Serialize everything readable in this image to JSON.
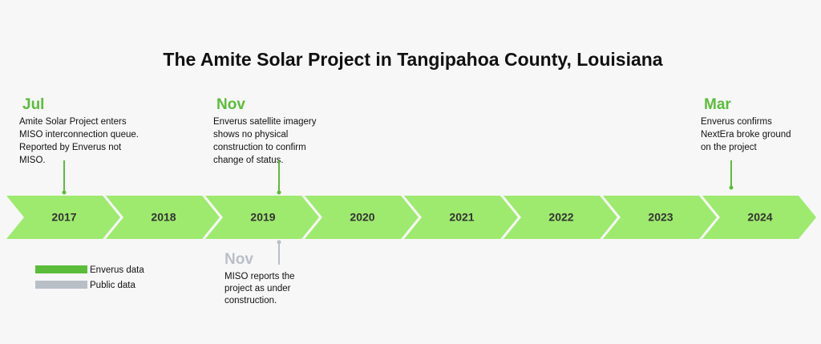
{
  "title": "The Amite Solar Project in Tangipahoa County, Louisiana",
  "years": [
    "2017",
    "2018",
    "2019",
    "2020",
    "2021",
    "2022",
    "2023",
    "2024"
  ],
  "events_above": [
    {
      "month": "Jul",
      "lines": [
        "Amite Solar Project enters",
        "MISO interconnection queue.",
        "Reported by Enverus not",
        "MISO."
      ]
    },
    {
      "month": "Nov",
      "lines": [
        "Enverus satellite imagery",
        "shows no physical",
        "construction to confirm",
        "change of status."
      ]
    },
    {
      "month": "Mar",
      "lines": [
        "Enverus confirms",
        "NextEra broke ground",
        "on the project"
      ]
    }
  ],
  "events_below": [
    {
      "month": "Nov",
      "lines": [
        "MISO reports the",
        "project as under",
        "construction."
      ]
    }
  ],
  "legend": [
    {
      "label": "Enverus data",
      "color": "#5bbd3a"
    },
    {
      "label": "Public data",
      "color": "#b9bfc7"
    }
  ]
}
